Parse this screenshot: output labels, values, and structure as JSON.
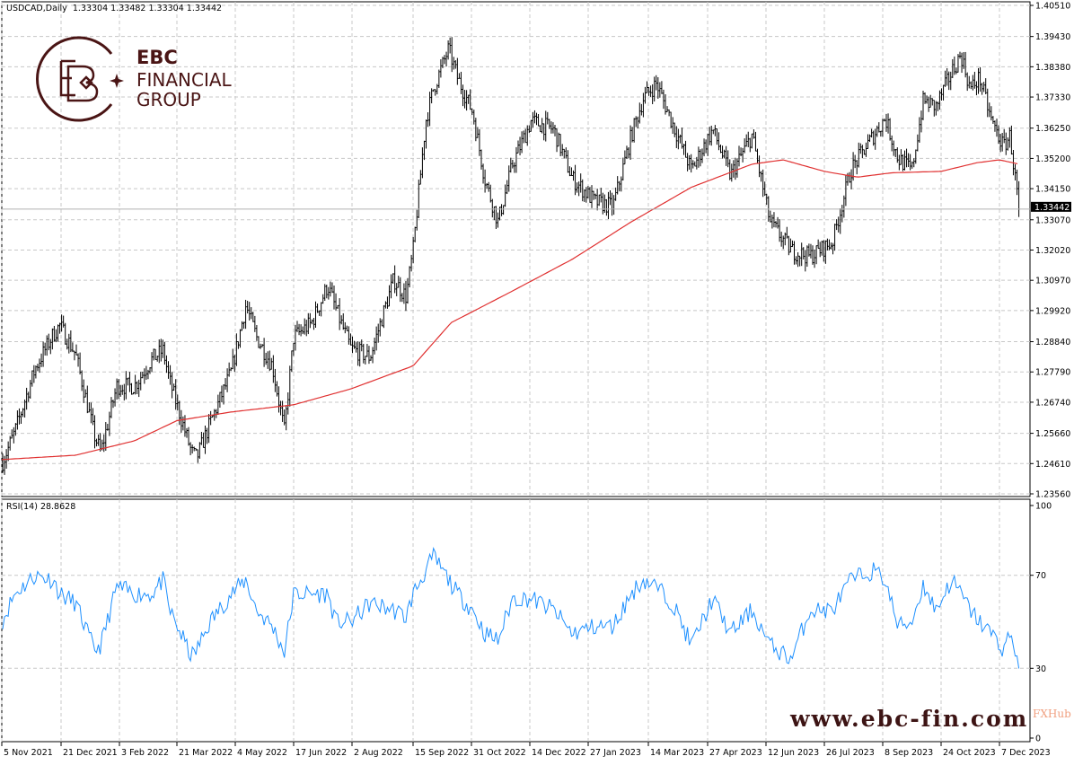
{
  "header": {
    "symbol": "USDCAD,Daily",
    "ohlc": "1.33304 1.33482 1.33304 1.33442"
  },
  "rsi_header": {
    "label": "RSI(14) 28.8628"
  },
  "logo": {
    "line1": "EBC",
    "line2": "FINANCIAL",
    "line3": "GROUP",
    "color": "#4a1515"
  },
  "watermark": "www.ebc-fin.com",
  "fxhub": "FXHub",
  "colors": {
    "bars": "#000000",
    "ma": "#e03030",
    "rsi": "#1e90ff",
    "grid": "#c8c8c8",
    "current_price_bg": "#000000"
  },
  "chart_data": [
    {
      "type": "bar",
      "subtype": "ohlc",
      "title": "USDCAD,Daily",
      "price_ticks": [
        "1.40510",
        "1.39430",
        "1.38380",
        "1.37330",
        "1.36250",
        "1.35200",
        "1.34150",
        "1.33070",
        "1.32020",
        "1.30970",
        "1.29920",
        "1.28840",
        "1.27790",
        "1.26740",
        "1.25660",
        "1.24610",
        "1.23560"
      ],
      "ylim": [
        1.2356,
        1.4051
      ],
      "current_price": "1.33442",
      "x_ticks": [
        {
          "date": "2021-11-05",
          "label": "5 Nov 2021"
        },
        {
          "date": "2021-12-21",
          "label": "21 Dec 2021"
        },
        {
          "date": "2022-02-03",
          "label": "3 Feb 2022"
        },
        {
          "date": "2022-03-21",
          "label": "21 Mar 2022"
        },
        {
          "date": "2022-05-04",
          "label": "4 May 2022"
        },
        {
          "date": "2022-06-17",
          "label": "17 Jun 2022"
        },
        {
          "date": "2022-08-02",
          "label": "2 Aug 2022"
        },
        {
          "date": "2022-09-15",
          "label": "15 Sep 2022"
        },
        {
          "date": "2022-10-31",
          "label": "31 Oct 2022"
        },
        {
          "date": "2022-12-14",
          "label": "14 Dec 2022"
        },
        {
          "date": "2023-01-27",
          "label": "27 Jan 2023"
        },
        {
          "date": "2023-03-14",
          "label": "14 Mar 2023"
        },
        {
          "date": "2023-04-27",
          "label": "27 Apr 2023"
        },
        {
          "date": "2023-06-12",
          "label": "12 Jun 2023"
        },
        {
          "date": "2023-07-26",
          "label": "26 Jul 2023"
        },
        {
          "date": "2023-09-08",
          "label": "8 Sep 2023"
        },
        {
          "date": "2023-10-24",
          "label": "24 Oct 2023"
        },
        {
          "date": "2023-12-07",
          "label": "7 Dec 2023"
        }
      ],
      "grid": true,
      "close_keypoints": [
        [
          "2021-11-05",
          1.246
        ],
        [
          "2021-11-15",
          1.257
        ],
        [
          "2021-12-01",
          1.2792
        ],
        [
          "2021-12-15",
          1.291
        ],
        [
          "2021-12-20",
          1.294
        ],
        [
          "2022-01-01",
          1.284
        ],
        [
          "2022-01-15",
          1.256
        ],
        [
          "2022-01-20",
          1.25
        ],
        [
          "2022-02-01",
          1.273
        ],
        [
          "2022-02-15",
          1.273
        ],
        [
          "2022-03-01",
          1.2823
        ],
        [
          "2022-03-10",
          1.2854
        ],
        [
          "2022-03-15",
          1.275
        ],
        [
          "2022-04-01",
          1.25
        ],
        [
          "2022-04-05",
          1.2481
        ],
        [
          "2022-04-15",
          1.26
        ],
        [
          "2022-05-01",
          1.278
        ],
        [
          "2022-05-12",
          1.301
        ],
        [
          "2022-05-20",
          1.29
        ],
        [
          "2022-06-01",
          1.28
        ],
        [
          "2022-06-10",
          1.2574
        ],
        [
          "2022-06-17",
          1.29
        ],
        [
          "2022-07-01",
          1.2948
        ],
        [
          "2022-07-14",
          1.308
        ],
        [
          "2022-07-20",
          1.3
        ],
        [
          "2022-08-01",
          1.286
        ],
        [
          "2022-08-15",
          1.283
        ],
        [
          "2022-09-01",
          1.31
        ],
        [
          "2022-09-10",
          1.304
        ],
        [
          "2022-09-15",
          1.32
        ],
        [
          "2022-09-25",
          1.365
        ],
        [
          "2022-10-01",
          1.376
        ],
        [
          "2022-10-13",
          1.39
        ],
        [
          "2022-10-20",
          1.38
        ],
        [
          "2022-11-01",
          1.368
        ],
        [
          "2022-11-10",
          1.345
        ],
        [
          "2022-11-20",
          1.33
        ],
        [
          "2022-12-01",
          1.35
        ],
        [
          "2022-12-15",
          1.365
        ],
        [
          "2023-01-01",
          1.362
        ],
        [
          "2023-01-15",
          1.345
        ],
        [
          "2023-02-01",
          1.337
        ],
        [
          "2023-02-15",
          1.3353
        ],
        [
          "2023-03-01",
          1.36
        ],
        [
          "2023-03-10",
          1.3727
        ],
        [
          "2023-03-20",
          1.378
        ],
        [
          "2023-04-01",
          1.364
        ],
        [
          "2023-04-15",
          1.348
        ],
        [
          "2023-05-01",
          1.362
        ],
        [
          "2023-05-15",
          1.346
        ],
        [
          "2023-06-01",
          1.36
        ],
        [
          "2023-06-15",
          1.33
        ],
        [
          "2023-07-01",
          1.32
        ],
        [
          "2023-07-15",
          1.318
        ],
        [
          "2023-08-01",
          1.3228
        ],
        [
          "2023-08-15",
          1.348
        ],
        [
          "2023-09-01",
          1.36
        ],
        [
          "2023-09-10",
          1.366
        ],
        [
          "2023-09-20",
          1.352
        ],
        [
          "2023-10-01",
          1.348
        ],
        [
          "2023-10-10",
          1.372
        ],
        [
          "2023-10-20",
          1.37
        ],
        [
          "2023-11-01",
          1.382
        ],
        [
          "2023-11-08",
          1.388
        ],
        [
          "2023-11-15",
          1.376
        ],
        [
          "2023-11-22",
          1.38
        ],
        [
          "2023-12-01",
          1.365
        ],
        [
          "2023-12-10",
          1.356
        ],
        [
          "2023-12-15",
          1.36
        ],
        [
          "2023-12-18",
          1.348
        ],
        [
          "2023-12-22",
          1.3344
        ]
      ],
      "moving_average": [
        [
          "2021-11-05",
          1.2475
        ],
        [
          "2022-01-01",
          1.249
        ],
        [
          "2022-02-15",
          1.254
        ],
        [
          "2022-03-21",
          1.261
        ],
        [
          "2022-05-01",
          1.264
        ],
        [
          "2022-06-17",
          1.2665
        ],
        [
          "2022-08-01",
          1.272
        ],
        [
          "2022-09-15",
          1.28
        ],
        [
          "2022-10-15",
          1.295
        ],
        [
          "2022-12-01",
          1.306
        ],
        [
          "2023-01-15",
          1.317
        ],
        [
          "2023-03-01",
          1.33
        ],
        [
          "2023-04-15",
          1.342
        ],
        [
          "2023-06-01",
          1.35
        ],
        [
          "2023-06-25",
          1.3515
        ],
        [
          "2023-07-26",
          1.3475
        ],
        [
          "2023-08-20",
          1.3455
        ],
        [
          "2023-09-15",
          1.347
        ],
        [
          "2023-10-24",
          1.3475
        ],
        [
          "2023-11-20",
          1.3505
        ],
        [
          "2023-12-07",
          1.3515
        ],
        [
          "2023-12-22",
          1.35
        ]
      ]
    },
    {
      "type": "line",
      "title": "RSI(14) 28.8628",
      "ylim": [
        0,
        100
      ],
      "y_ticks": [
        "100",
        "70",
        "30",
        "0"
      ],
      "levels": [
        70,
        30
      ],
      "rsi_keypoints": [
        [
          "2021-11-05",
          50
        ],
        [
          "2021-11-15",
          62
        ],
        [
          "2021-12-01",
          70
        ],
        [
          "2021-12-15",
          68
        ],
        [
          "2021-12-20",
          62
        ],
        [
          "2022-01-01",
          58
        ],
        [
          "2022-01-15",
          38
        ],
        [
          "2022-01-20",
          40
        ],
        [
          "2022-02-01",
          65
        ],
        [
          "2022-02-15",
          62
        ],
        [
          "2022-03-01",
          62
        ],
        [
          "2022-03-10",
          68
        ],
        [
          "2022-03-15",
          55
        ],
        [
          "2022-04-01",
          35
        ],
        [
          "2022-04-05",
          38
        ],
        [
          "2022-04-15",
          50
        ],
        [
          "2022-05-01",
          62
        ],
        [
          "2022-05-12",
          68
        ],
        [
          "2022-05-20",
          55
        ],
        [
          "2022-06-01",
          48
        ],
        [
          "2022-06-10",
          37
        ],
        [
          "2022-06-17",
          62
        ],
        [
          "2022-07-01",
          62
        ],
        [
          "2022-07-14",
          62
        ],
        [
          "2022-07-20",
          50
        ],
        [
          "2022-08-01",
          50
        ],
        [
          "2022-08-15",
          58
        ],
        [
          "2022-09-01",
          55
        ],
        [
          "2022-09-10",
          52
        ],
        [
          "2022-09-15",
          62
        ],
        [
          "2022-09-25",
          72
        ],
        [
          "2022-10-01",
          78
        ],
        [
          "2022-10-13",
          68
        ],
        [
          "2022-10-20",
          62
        ],
        [
          "2022-11-01",
          55
        ],
        [
          "2022-11-10",
          45
        ],
        [
          "2022-11-20",
          42
        ],
        [
          "2022-12-01",
          60
        ],
        [
          "2022-12-15",
          60
        ],
        [
          "2023-01-01",
          55
        ],
        [
          "2023-01-15",
          45
        ],
        [
          "2023-02-01",
          48
        ],
        [
          "2023-02-15",
          48
        ],
        [
          "2023-03-01",
          62
        ],
        [
          "2023-03-10",
          68
        ],
        [
          "2023-03-20",
          65
        ],
        [
          "2023-04-01",
          58
        ],
        [
          "2023-04-15",
          40
        ],
        [
          "2023-05-01",
          60
        ],
        [
          "2023-05-15",
          45
        ],
        [
          "2023-06-01",
          55
        ],
        [
          "2023-06-15",
          40
        ],
        [
          "2023-07-01",
          34
        ],
        [
          "2023-07-15",
          55
        ],
        [
          "2023-08-01",
          55
        ],
        [
          "2023-08-15",
          68
        ],
        [
          "2023-09-01",
          72
        ],
        [
          "2023-09-10",
          68
        ],
        [
          "2023-09-20",
          48
        ],
        [
          "2023-10-01",
          50
        ],
        [
          "2023-10-10",
          66
        ],
        [
          "2023-10-20",
          55
        ],
        [
          "2023-11-01",
          68
        ],
        [
          "2023-11-08",
          62
        ],
        [
          "2023-11-15",
          55
        ],
        [
          "2023-11-22",
          50
        ],
        [
          "2023-12-01",
          45
        ],
        [
          "2023-12-10",
          38
        ],
        [
          "2023-12-15",
          45
        ],
        [
          "2023-12-18",
          40
        ],
        [
          "2023-12-22",
          28.86
        ]
      ]
    }
  ]
}
